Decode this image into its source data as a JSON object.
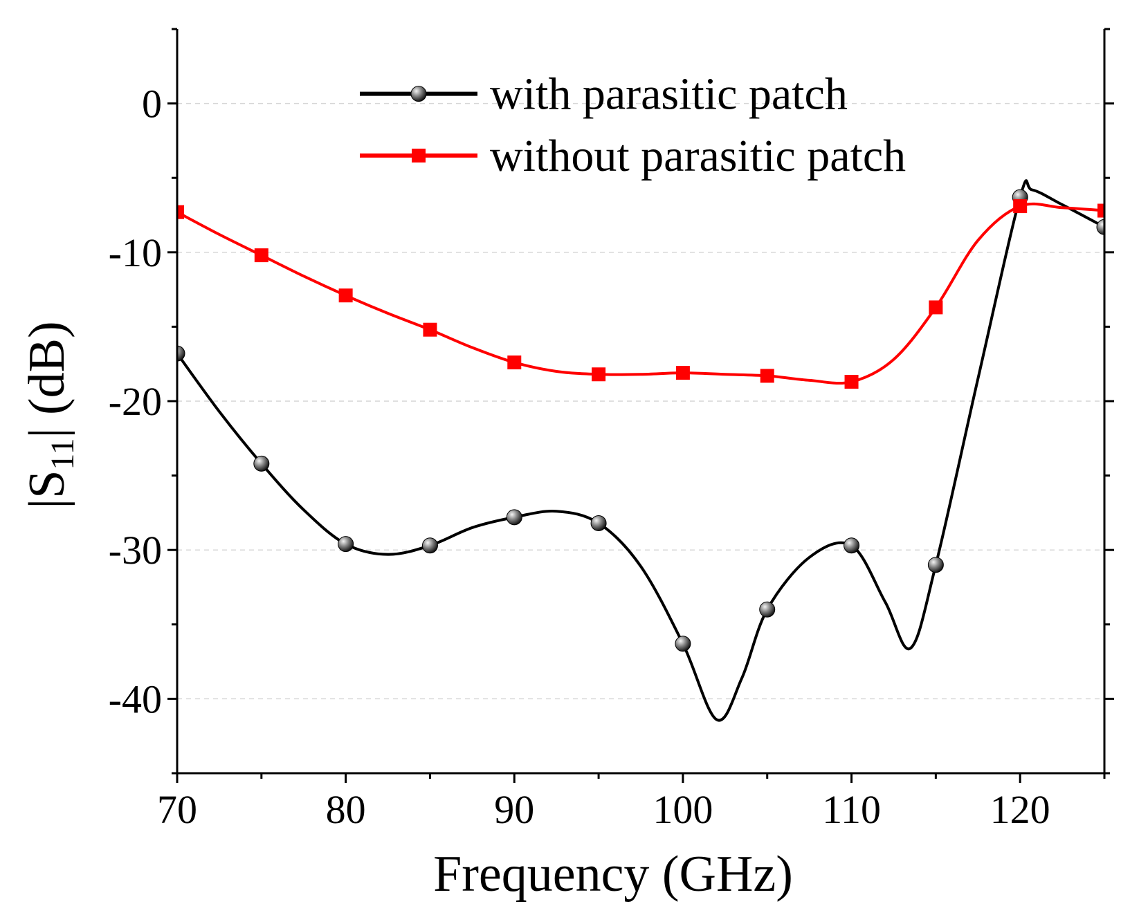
{
  "chart_data": {
    "type": "line",
    "title": "",
    "xlabel": "Frequency (GHz)",
    "ylabel_main": "|S",
    "ylabel_sub": "11",
    "ylabel_tail": "| (dB)",
    "xlim": [
      70,
      125
    ],
    "ylim": [
      -45,
      5
    ],
    "xticks": [
      70,
      80,
      90,
      100,
      110,
      120
    ],
    "xtick_labels": [
      "70",
      "80",
      "90",
      "100",
      "110",
      "120"
    ],
    "yticks": [
      -40,
      -30,
      -20,
      -10,
      0
    ],
    "ytick_labels": [
      "-40",
      "-30",
      "-20",
      "-10",
      "0"
    ],
    "x_minor_step": 5,
    "y_minor_step": 5,
    "grid": "dashed-horizontal",
    "legend_position": "top-right",
    "series": [
      {
        "name": "with parasitic patch",
        "color": "#000000",
        "marker": "sphere",
        "x": [
          70,
          75,
          80,
          85,
          90,
          95,
          100,
          105,
          110,
          115,
          120,
          125
        ],
        "y": [
          -16.8,
          -24.2,
          -29.6,
          -29.7,
          -27.8,
          -28.2,
          -36.3,
          -34.0,
          -29.7,
          -31.0,
          -6.3,
          -8.3
        ],
        "curve_x": [
          70,
          72.5,
          75,
          77.5,
          80,
          82.5,
          85,
          87.5,
          90,
          92.5,
          95,
          97.5,
          100,
          102,
          103.5,
          105,
          107.5,
          110,
          112,
          113.5,
          115,
          117.5,
          120,
          120.7,
          122.5,
          125
        ],
        "curve_y": [
          -16.8,
          -20.7,
          -24.2,
          -27.3,
          -29.6,
          -30.3,
          -29.7,
          -28.5,
          -27.8,
          -27.4,
          -28.2,
          -31.1,
          -36.3,
          -41.4,
          -38.6,
          -34.0,
          -30.5,
          -29.7,
          -33.5,
          -36.6,
          -31.0,
          -18.5,
          -6.3,
          -5.8,
          -6.8,
          -8.3
        ]
      },
      {
        "name": "without parasitic patch",
        "color": "#ff0000",
        "marker": "square",
        "x": [
          70,
          75,
          80,
          85,
          90,
          95,
          100,
          105,
          110,
          115,
          120,
          125
        ],
        "y": [
          -7.3,
          -10.2,
          -12.9,
          -15.2,
          -17.4,
          -18.2,
          -18.1,
          -18.3,
          -18.7,
          -13.7,
          -6.9,
          -7.2
        ],
        "curve_x": [
          70,
          72.5,
          75,
          77.5,
          80,
          82.5,
          85,
          87.5,
          90,
          92.5,
          95,
          97.5,
          100,
          102.5,
          105,
          107.5,
          110,
          112.5,
          115,
          117.5,
          120,
          122.5,
          125
        ],
        "curve_y": [
          -7.3,
          -8.8,
          -10.2,
          -11.6,
          -12.9,
          -14.1,
          -15.2,
          -16.4,
          -17.4,
          -18.0,
          -18.2,
          -18.2,
          -18.1,
          -18.2,
          -18.3,
          -18.6,
          -18.7,
          -17.2,
          -13.7,
          -9.2,
          -6.9,
          -7.0,
          -7.2
        ]
      }
    ]
  }
}
